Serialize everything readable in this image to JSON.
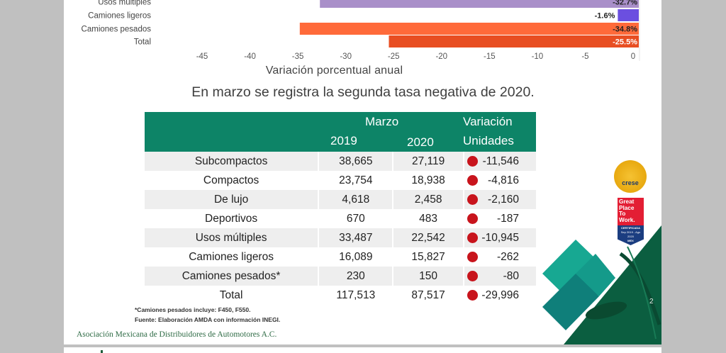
{
  "chart_data": {
    "type": "bar",
    "orientation": "horizontal",
    "categories": [
      "Usos múltiples",
      "Camiones ligeros",
      "Camiones pesados",
      "Total"
    ],
    "values": [
      -32.7,
      -1.6,
      -34.8,
      -25.5
    ],
    "value_labels": [
      "-32.7%",
      "-1.6%",
      "-34.8%",
      "-25.5%"
    ],
    "colors": [
      "#a98fc9",
      "#6b4fe0",
      "#ff6a3a",
      "#e84e22"
    ],
    "label_colors": [
      "#222222",
      "#222222",
      "#222222",
      "#ffffff"
    ],
    "xlabel": "Variación porcentual anual",
    "xlim": [
      -45,
      0
    ],
    "xticks": [
      -45,
      -40,
      -35,
      -30,
      -25,
      -20,
      -15,
      -10,
      -5,
      0
    ],
    "xtick_labels": [
      "-45",
      "-40",
      "-35",
      "-30",
      "-25",
      "-20",
      "-15",
      "-10",
      "-5",
      "0"
    ],
    "grid": false,
    "note": "chart is cropped at top; only last four categories visible"
  },
  "subtitle": "En marzo se registra la segunda tasa negativa de 2020.",
  "table": {
    "header": {
      "group": "Marzo",
      "col_2019": "2019",
      "col_2020": "2020",
      "var_top": "Variación",
      "var_bottom": "Unidades"
    },
    "status_color": "#c8141c",
    "rows": [
      {
        "label": "Subcompactos",
        "y2019": "38,665",
        "y2020": "27,119",
        "var": "-11,546",
        "status": "negative"
      },
      {
        "label": "Compactos",
        "y2019": "23,754",
        "y2020": "18,938",
        "var": "-4,816",
        "status": "negative"
      },
      {
        "label": "De lujo",
        "y2019": "4,618",
        "y2020": "2,458",
        "var": "-2,160",
        "status": "negative"
      },
      {
        "label": "Deportivos",
        "y2019": "670",
        "y2020": "483",
        "var": "-187",
        "status": "negative"
      },
      {
        "label": "Usos múltiples",
        "y2019": "33,487",
        "y2020": "22,542",
        "var": "-10,945",
        "status": "negative"
      },
      {
        "label": "Camiones ligeros",
        "y2019": "16,089",
        "y2020": "15,827",
        "var": "-262",
        "status": "negative"
      },
      {
        "label": "Camiones pesados*",
        "y2019": "230",
        "y2020": "150",
        "var": "-80",
        "status": "negative"
      },
      {
        "label": "Total",
        "y2019": "117,513",
        "y2020": "87,517",
        "var": "-29,996",
        "status": "negative"
      }
    ]
  },
  "notes": {
    "line1": "*Camiones pesados incluye: F450, F550.",
    "line2": "Fuente: Elaboración AMDA con información INEGI."
  },
  "footer": {
    "organization": "Asociación Mexicana de Distribuidores de Automotores A.C.",
    "page_number": "2"
  },
  "badges": {
    "crese": "crese",
    "gptw_lines": [
      "Great",
      "Place",
      "To",
      "Work."
    ],
    "gptw_cert": "CERTIFICADA",
    "gptw_period": "Sep 2019 - Ago 2020",
    "gptw_country": "MEX"
  },
  "colors": {
    "table_header": "#0d8467",
    "row_alt": "#eeeeee",
    "brand_green": "#2e6b45"
  }
}
